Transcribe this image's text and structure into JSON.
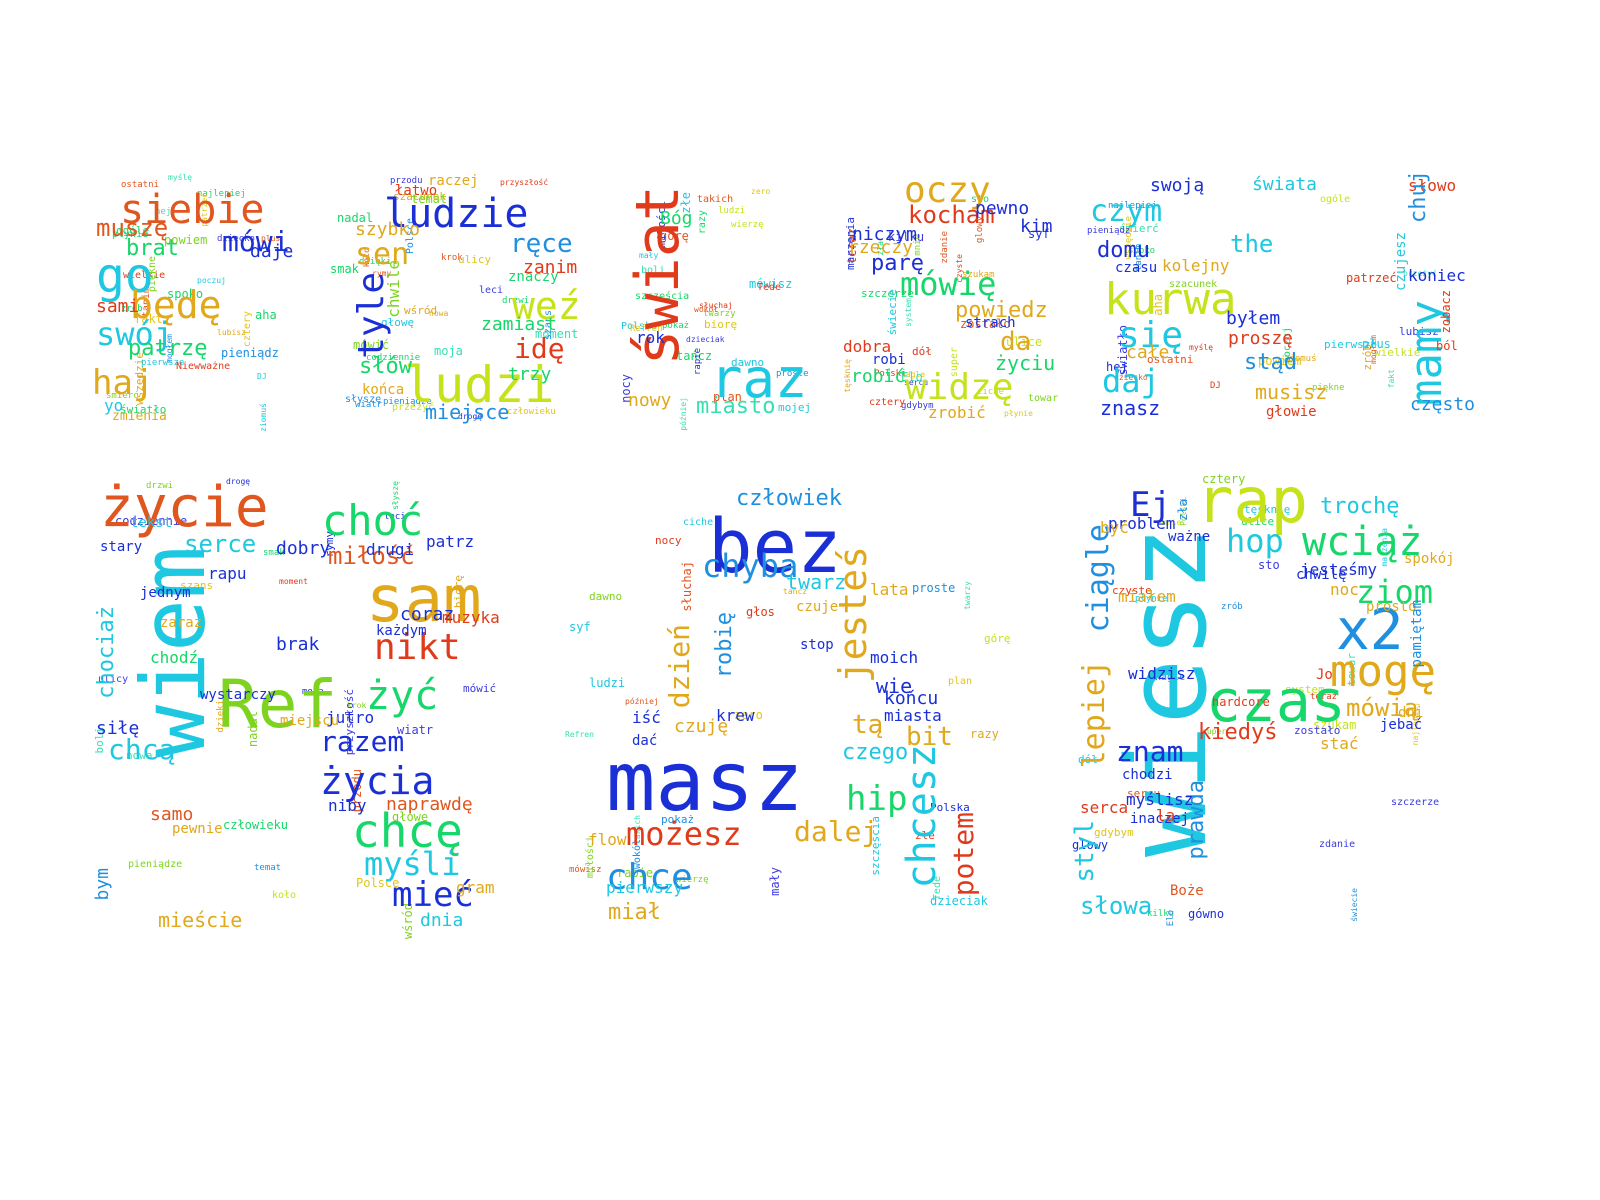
{
  "palette": [
    "#e0561f",
    "#1ec8e0",
    "#7ed320",
    "#1a2fd6",
    "#e0c51a",
    "#17d66a",
    "#e03a1a",
    "#1f8fe0",
    "#c6e21a",
    "#35e0b0",
    "#e0a81a",
    "#3b3be0"
  ],
  "cloud": {
    "words": [
      "siebie",
      "mówi",
      "muszę",
      "go",
      "brat",
      "będę",
      "swój",
      "haj",
      "patrzę",
      "sami",
      "yo",
      "daje",
      "zmienia",
      "Niewważne",
      "ludzie",
      "szybko",
      "sen",
      "tyle",
      "ręce",
      "zanim",
      "weź",
      "zamiast",
      "idę",
      "ludzi",
      "słów",
      "trzy",
      "miejsce",
      "końca",
      "łatwo",
      "raczej",
      "znaczy",
      "chwile",
      "świat",
      "Bóg",
      "raz",
      "rok",
      "nowy",
      "miasto",
      "mojej",
      "oczy",
      "kocham",
      "niczym",
      "pewno",
      "kim",
      "rzeczy",
      "parę",
      "mówię",
      "powiedz",
      "dobra",
      "robi",
      "robić",
      "da",
      "życiu",
      "widzę",
      "zrobić",
      "strach",
      "swoją",
      "czym",
      "świata",
      "słowo",
      "the",
      "domu",
      "czasu",
      "kolejny",
      "kurwa",
      "się",
      "byłem",
      "koniec",
      "mamy",
      "chuj",
      "proszę",
      "daj",
      "stąd",
      "całe",
      "znasz",
      "musisz",
      "głowie",
      "często",
      "ból",
      "zobacz",
      "czujesz",
      "życie",
      "choć",
      "serce",
      "miłość",
      "sam",
      "patrz",
      "nikt",
      "żyć",
      "Ref",
      "wiem",
      "chociaż",
      "chcą",
      "razem",
      "życia",
      "chcę",
      "myśli",
      "mieć",
      "dnia",
      "naprawdę",
      "jutro",
      "coraz",
      "muzyka",
      "każdym",
      "brak",
      "dobry",
      "drugi",
      "tekst",
      "stary",
      "rapu",
      "jednym",
      "zaraz",
      "chodź",
      "wystarczy",
      "siłę",
      "samo",
      "pewnie",
      "miejscu",
      "mieście",
      "bym",
      "niby",
      "gram",
      "człowiek",
      "bez",
      "chyba",
      "jesteś",
      "twarz",
      "robię",
      "dzień",
      "masz",
      "możesz",
      "dalej",
      "chce",
      "miał",
      "pierwszy",
      "flow",
      "hip",
      "chcesz",
      "potem",
      "czego",
      "tą",
      "bit",
      "krew",
      "czuję",
      "iść",
      "dać",
      "wie",
      "moich",
      "końcu",
      "miasta",
      "lata",
      "stop",
      "głos",
      "czuje",
      "rap",
      "Ej",
      "hop",
      "wciąż",
      "trochę",
      "ciągle",
      "wiesz",
      "ziom",
      "x2",
      "mogę",
      "czas",
      "kiedyś",
      "znam",
      "lepiej",
      "styl",
      "prawda",
      "słowa",
      "mówią",
      "miałem",
      "noc",
      "problem",
      "ważne",
      "jesteśmy",
      "chwilę",
      "prosto",
      "dni",
      "pamiętam",
      "spokój",
      "serca",
      "chodzi",
      "widzisz",
      "myślisz",
      "inaczej",
      "la",
      "Jo",
      "stać",
      "hardcore",
      "Boże",
      "gówno",
      "być",
      "jebać"
    ],
    "filler": [
      "płynie",
      "cztery",
      "najlepiej",
      "zrób",
      "ziomuś",
      "wielkie",
      "światło",
      "hej",
      "śmierć",
      "fakt",
      "ogóle",
      "mogłem",
      "spoko",
      "powiem",
      "wszędzie",
      "pieniądz",
      "piękne",
      "dziecko",
      "poczuj",
      "aha",
      "plus",
      "lubisz",
      "ostatni",
      "DJ",
      "tanim",
      "pierwsze",
      "patrzeć",
      "myślę",
      "przeżyć",
      "szacunek",
      "koło",
      "wśród",
      "słyszę",
      "leci",
      "moja",
      "moment",
      "szans",
      "drzwi",
      "smak",
      "mówić",
      "przodu",
      "Polsce",
      "pieniądze",
      "dzięki",
      "nadal",
      "krok",
      "nowa",
      "rymy",
      "przyszłość",
      "codziennie",
      "człowieku",
      "temat",
      "drogę",
      "wiatr",
      "głowę",
      "ulicy",
      "boli",
      "biorę",
      "później",
      "mówisz",
      "górę",
      "proste",
      "razy",
      "twarzy",
      "takich",
      "Polska",
      "dzieciak",
      "nocy",
      "plan",
      "Refren",
      "ludzi",
      "miłości",
      "słuchaj",
      "złe",
      "mały",
      "Tede",
      "tańcz",
      "pokaż",
      "szczęścia",
      "wierzę",
      "zero",
      "rapie",
      "wokół",
      "dawno",
      "syf",
      "ciche",
      "Polski",
      "sto",
      "zdanie",
      "kilku",
      "szukam",
      "tęsknię",
      "marzenia",
      "teraz",
      "świecie",
      "super",
      "ulice",
      "system",
      "towar",
      "nagle",
      "gdybym",
      "sercu",
      "dół",
      "Elo",
      "zostało",
      "szczerze",
      "mnie",
      "zła",
      "glowy",
      "czyste"
    ]
  }
}
